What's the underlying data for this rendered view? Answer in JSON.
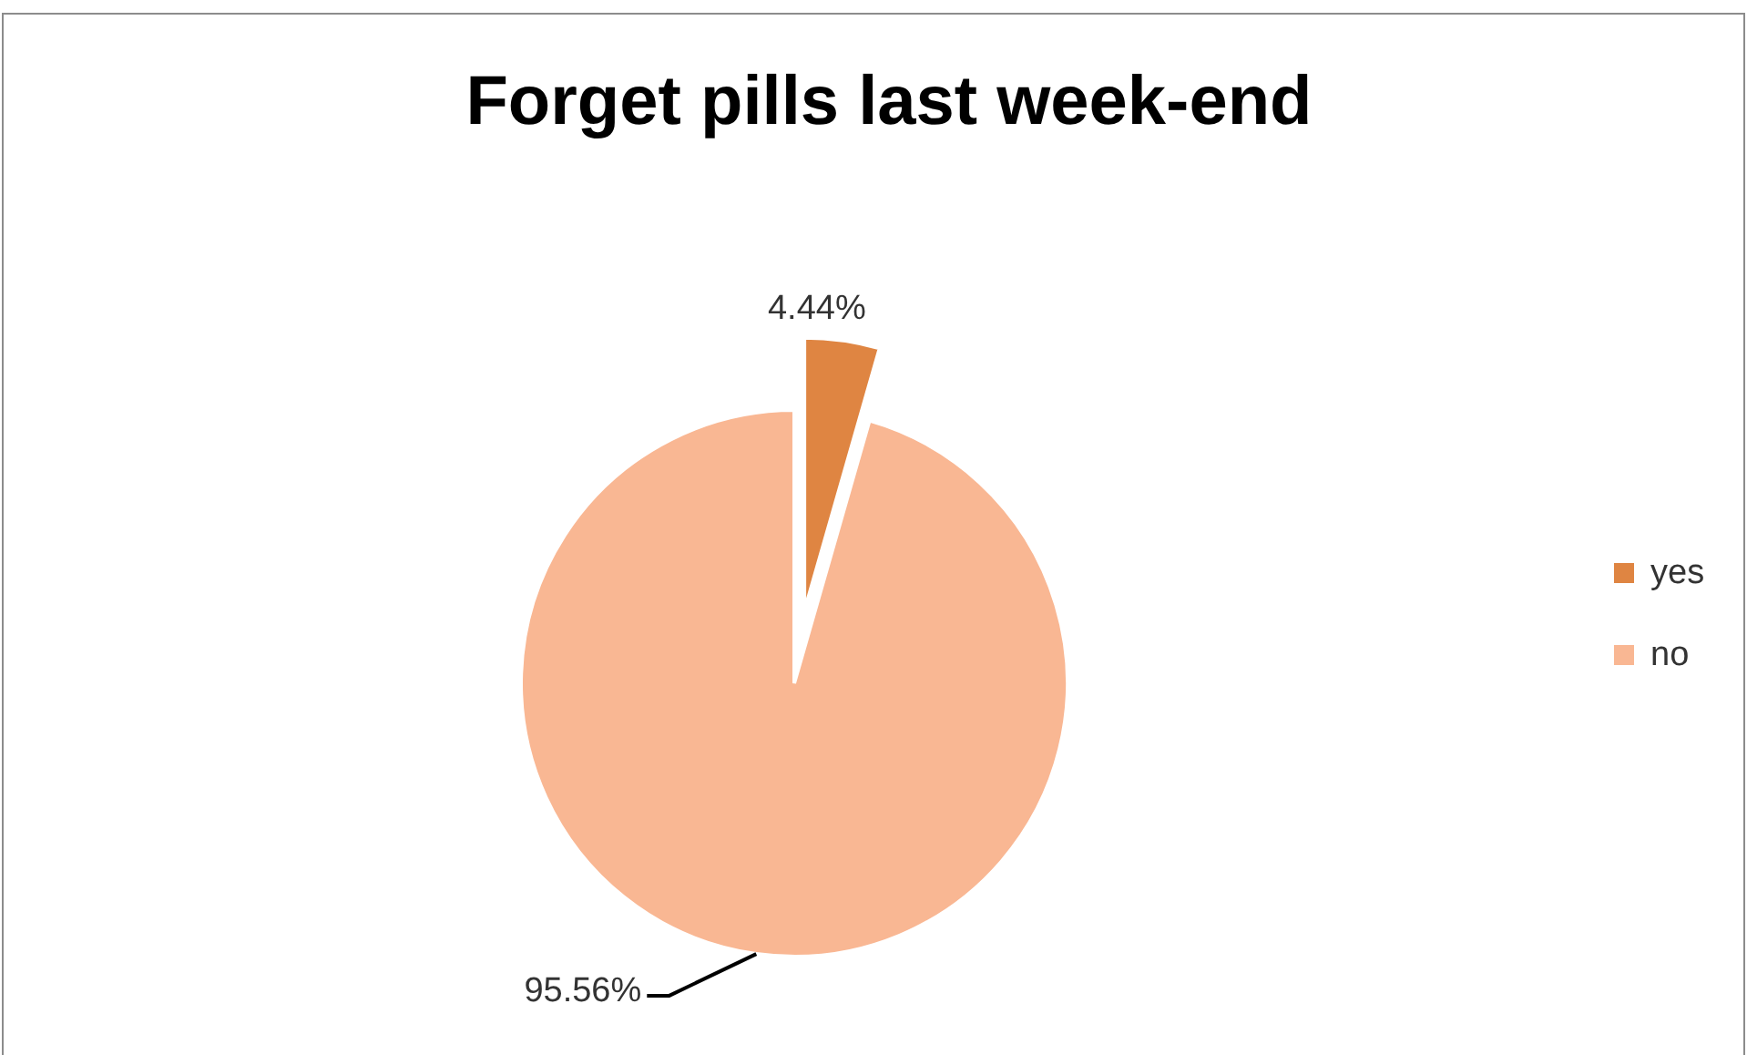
{
  "chart_data": {
    "type": "pie",
    "title": "Forget pills last week-end",
    "categories": [
      "yes",
      "no"
    ],
    "values": [
      4.44,
      95.56
    ],
    "colors": [
      "#df8542",
      "#f9b793"
    ],
    "value_labels": [
      "4.44%",
      "95.56%"
    ],
    "legend": "right"
  }
}
